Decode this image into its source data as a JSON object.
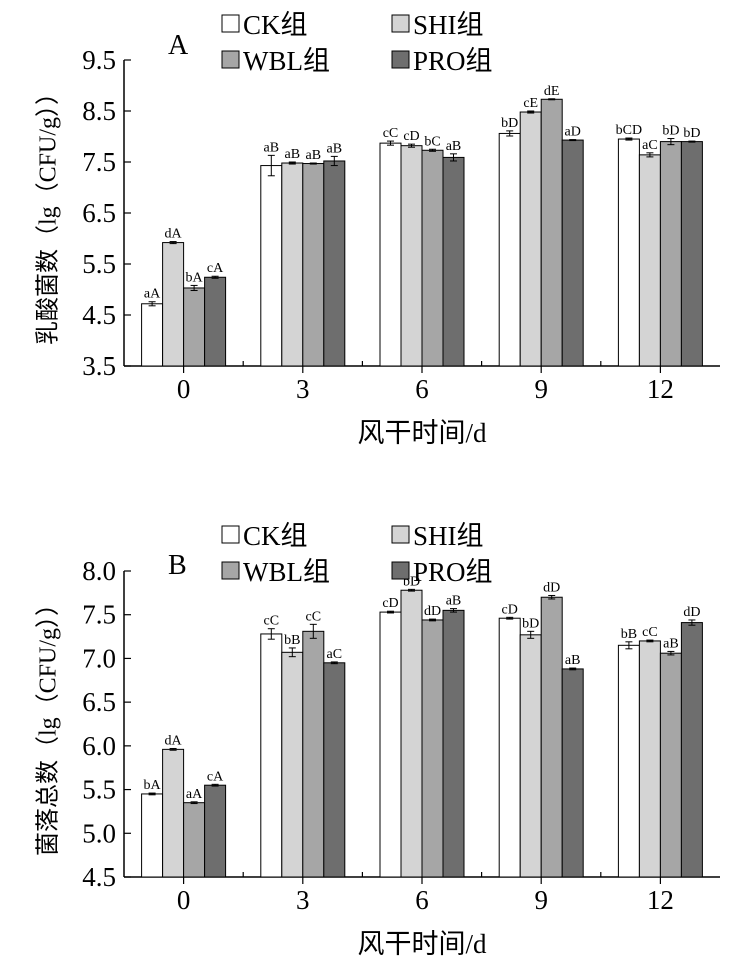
{
  "chart_data": [
    {
      "type": "bar",
      "panel_label": "A",
      "categories": [
        "0",
        "3",
        "6",
        "9",
        "12"
      ],
      "xlabel": "风干时间/d",
      "ylabel": "乳酸菌数（lg（CFU/g））",
      "ylim": [
        3.5,
        9.5
      ],
      "yticks": [
        "3.5",
        "4.5",
        "5.5",
        "6.5",
        "7.5",
        "8.5",
        "9.5"
      ],
      "grid": false,
      "legend_position": "top",
      "series": [
        {
          "name": "CK组",
          "color": "#ffffff",
          "values": [
            4.72,
            7.43,
            7.87,
            8.06,
            7.95
          ],
          "errors": [
            0.04,
            0.2,
            0.04,
            0.05,
            0.02
          ],
          "labels": [
            "aA",
            "aB",
            "cC",
            "bD",
            "bCD"
          ]
        },
        {
          "name": "SHI组",
          "color": "#d4d4d4",
          "values": [
            5.92,
            7.48,
            7.82,
            8.48,
            7.64
          ],
          "errors": [
            0.02,
            0.02,
            0.03,
            0.02,
            0.04
          ],
          "labels": [
            "dA",
            "aB",
            "cD",
            "cE",
            "aC"
          ]
        },
        {
          "name": "WBL组",
          "color": "#a6a6a6",
          "values": [
            5.03,
            7.47,
            7.73,
            8.73,
            7.9
          ],
          "errors": [
            0.05,
            0.01,
            0.02,
            0.01,
            0.06
          ],
          "labels": [
            "bA",
            "aB",
            "bC",
            "dE",
            "bD"
          ]
        },
        {
          "name": "PRO组",
          "color": "#6e6e6e",
          "values": [
            5.24,
            7.52,
            7.59,
            7.93,
            7.9
          ],
          "errors": [
            0.02,
            0.09,
            0.07,
            0.01,
            0.01
          ],
          "labels": [
            "cA",
            "aB",
            "aB",
            "aD",
            "bD"
          ]
        }
      ]
    },
    {
      "type": "bar",
      "panel_label": "B",
      "categories": [
        "0",
        "3",
        "6",
        "9",
        "12"
      ],
      "xlabel": "风干时间/d",
      "ylabel": "菌落总数（lg（CFU/g））",
      "ylim": [
        4.5,
        8.0
      ],
      "yticks": [
        "4.5",
        "5.0",
        "5.5",
        "6.0",
        "6.5",
        "7.0",
        "7.5",
        "8.0"
      ],
      "grid": false,
      "legend_position": "top",
      "series": [
        {
          "name": "CK组",
          "color": "#ffffff",
          "values": [
            5.45,
            7.28,
            7.53,
            7.46,
            7.15
          ],
          "errors": [
            0.01,
            0.06,
            0.01,
            0.01,
            0.04
          ],
          "labels": [
            "bA",
            "cC",
            "cD",
            "cD",
            "bB"
          ]
        },
        {
          "name": "SHI组",
          "color": "#d4d4d4",
          "values": [
            5.96,
            7.07,
            7.78,
            7.27,
            7.2
          ],
          "errors": [
            0.01,
            0.05,
            0.01,
            0.04,
            0.01
          ],
          "labels": [
            "dA",
            "bB",
            "bD",
            "bD",
            "cC"
          ]
        },
        {
          "name": "WBL组",
          "color": "#a6a6a6",
          "values": [
            5.35,
            7.31,
            7.44,
            7.7,
            7.06
          ],
          "errors": [
            0.01,
            0.08,
            0.01,
            0.02,
            0.02
          ],
          "labels": [
            "aA",
            "cC",
            "dD",
            "dD",
            "aB"
          ]
        },
        {
          "name": "PRO组",
          "color": "#6e6e6e",
          "values": [
            5.55,
            6.95,
            7.55,
            6.88,
            7.41
          ],
          "errors": [
            0.01,
            0.01,
            0.02,
            0.01,
            0.03
          ],
          "labels": [
            "cA",
            "aC",
            "aB",
            "aB",
            "dD"
          ]
        }
      ]
    }
  ]
}
